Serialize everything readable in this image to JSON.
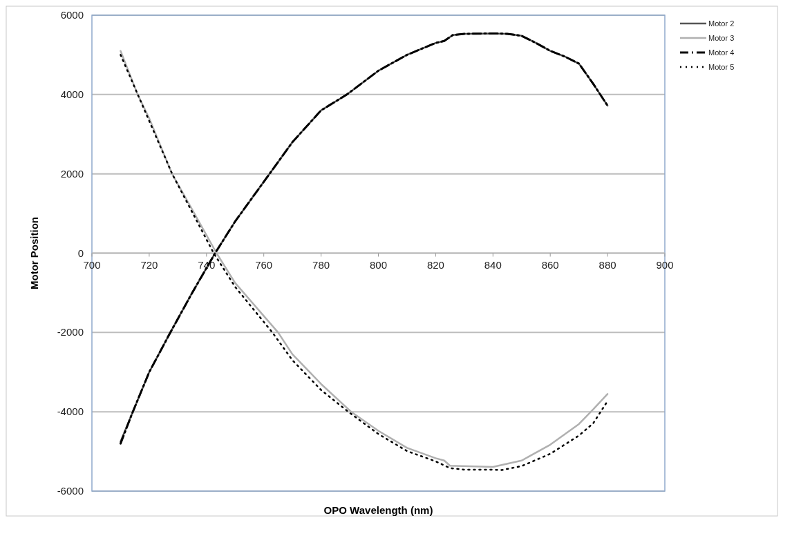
{
  "chart_data": {
    "type": "line",
    "xlabel": "OPO Wavelength (nm)",
    "ylabel": "Motor Position",
    "xlim": [
      700,
      900
    ],
    "xticks": [
      700,
      720,
      740,
      760,
      780,
      800,
      820,
      840,
      860,
      880,
      900
    ],
    "ylim": [
      -6000,
      6000
    ],
    "yticks": [
      -6000,
      -4000,
      -2000,
      0,
      2000,
      4000,
      6000
    ],
    "grid": "y",
    "legend": "top right",
    "series": [
      {
        "name": "Motor 2",
        "color": "#555555",
        "line_style": "solid",
        "x": [
          710,
          714,
          720,
          727,
          735,
          743,
          750,
          762,
          770,
          780,
          789,
          800,
          810,
          820,
          823,
          826,
          830,
          840,
          845,
          850,
          855,
          860,
          865,
          870,
          875,
          880
        ],
        "values": [
          -4750,
          -4050,
          -3000,
          -2050,
          -1000,
          0,
          800,
          2000,
          2800,
          3600,
          4000,
          4600,
          5000,
          5300,
          5350,
          5500,
          5530,
          5540,
          5530,
          5480,
          5300,
          5100,
          4960,
          4780,
          4270,
          3720
        ]
      },
      {
        "name": "Motor 3",
        "color": "#b0b0b0",
        "line_style": "solid",
        "x": [
          710,
          716,
          720,
          728,
          735,
          743.5,
          750,
          765,
          770,
          780,
          790.5,
          800,
          810,
          820,
          823,
          825,
          840,
          850,
          860,
          870,
          875,
          880
        ],
        "values": [
          5100,
          4000,
          3400,
          2000,
          1100,
          0,
          -750,
          -2000,
          -2550,
          -3300,
          -4000,
          -4480,
          -4910,
          -5170,
          -5230,
          -5360,
          -5390,
          -5230,
          -4830,
          -4310,
          -3940,
          -3550
        ]
      },
      {
        "name": "Motor 4",
        "color": "#000000",
        "line_style": "dashed",
        "x": [
          710,
          714,
          720,
          727,
          735,
          743,
          750,
          762,
          770,
          780,
          789,
          800,
          810,
          820,
          823,
          826,
          830,
          840,
          845,
          850,
          855,
          860,
          865,
          870,
          875,
          880
        ],
        "values": [
          -4800,
          -4050,
          -3000,
          -2050,
          -1000,
          0,
          800,
          2000,
          2800,
          3600,
          4000,
          4600,
          5000,
          5300,
          5350,
          5500,
          5530,
          5540,
          5530,
          5480,
          5300,
          5100,
          4960,
          4780,
          4270,
          3720
        ]
      },
      {
        "name": "Motor 5",
        "color": "#000000",
        "line_style": "dotted",
        "x": [
          710,
          716,
          728,
          742.5,
          750,
          763,
          770,
          780,
          789.5,
          800,
          810,
          820,
          825,
          830,
          840,
          843,
          850,
          860,
          870,
          875,
          880
        ],
        "values": [
          5000,
          4000,
          2000,
          0,
          -850,
          -2000,
          -2700,
          -3450,
          -4000,
          -4560,
          -4990,
          -5250,
          -5420,
          -5460,
          -5460,
          -5470,
          -5370,
          -5060,
          -4600,
          -4290,
          -3730
        ]
      }
    ]
  }
}
